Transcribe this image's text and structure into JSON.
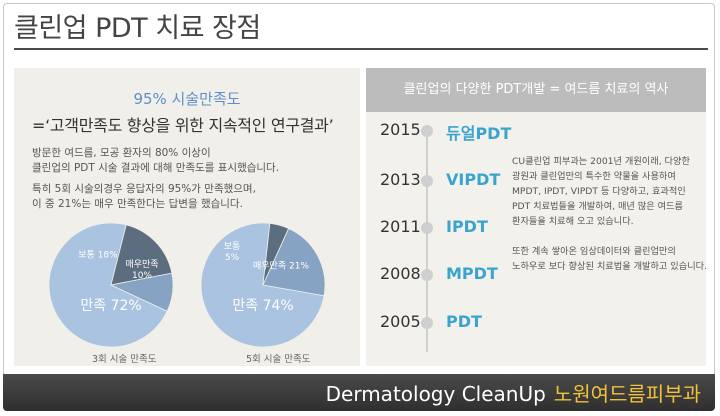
{
  "page": {
    "title": "클린업 PDT 치료 장점"
  },
  "left": {
    "headline": "95% 시술만족도",
    "quote": "=‘고객만족도 향상을 위한 지속적인 연구결과’",
    "desc1": [
      "방문한 여드름, 모공 환자의 80% 이상이",
      "클린업의 PDT 시술 결과에 대해 만족도를 표시했습니다."
    ],
    "desc2": [
      "특히 5회 시술의경우 응답자의 95%가 만족했으며,",
      "이 중 21%는 매우 만족한다는 답변을 했습니다."
    ],
    "pies": [
      {
        "caption": "3회 시술 만족도",
        "slices": [
          {
            "label": "만족 72%",
            "value": 72,
            "color": "#a9c3e0"
          },
          {
            "label": "보통 18%",
            "value": 18,
            "color": "#5b6d7e"
          },
          {
            "label": "매우만족 10%",
            "value": 10,
            "color": "#87a3c4"
          }
        ],
        "label_lines": [
          [
            "만족 72%"
          ],
          [
            "보통 18%"
          ],
          [
            "매우만족",
            "10%"
          ]
        ]
      },
      {
        "caption": "5회 시술 만족도",
        "slices": [
          {
            "label": "만족 74%",
            "value": 74,
            "color": "#a9c3e0"
          },
          {
            "label": "보통 5%",
            "value": 5,
            "color": "#5b6d7e"
          },
          {
            "label": "매우만족 21%",
            "value": 21,
            "color": "#87a3c4"
          }
        ],
        "label_lines": [
          [
            "만족 74%"
          ],
          [
            "보통",
            "5%"
          ],
          [
            "매우만족 21%"
          ]
        ]
      }
    ]
  },
  "right": {
    "header": "클린업의 다양한 PDT개발 = 여드름 치료의 역사",
    "timeline": [
      {
        "year": "2015",
        "name": "듀얼PDT"
      },
      {
        "year": "2013",
        "name": "VIPDT"
      },
      {
        "year": "2011",
        "name": "IPDT"
      },
      {
        "year": "2008",
        "name": "MPDT"
      },
      {
        "year": "2005",
        "name": "PDT"
      }
    ],
    "para1": [
      "CU클린업 피부과는 2001년 개원이래, 다양한",
      "광원과 클린업만의 특수한 약물을 사용하여",
      "MPDT, IPDT, VIPDT 등 다양하고, 효과적인",
      "PDT 치료법들을 개발하여, 매년 많은 여드름",
      "환자들을 치료해 오고 있습니다."
    ],
    "para2": [
      "또한 계속 쌓아온 임상데이터와 클린업만의",
      "노하우로 보다 향상된 치료법을 개발하고 있습니다."
    ]
  },
  "footer": {
    "brand_en": "Dermatology CleanUp",
    "brand_ko": "노원여드름피부과"
  }
}
